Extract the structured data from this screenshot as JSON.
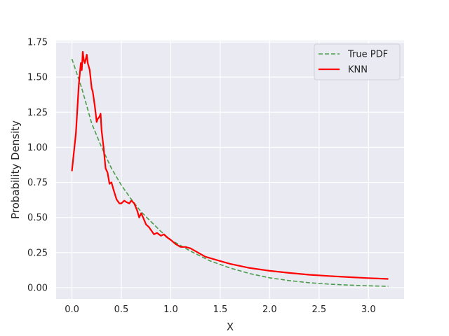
{
  "chart_data": {
    "type": "line",
    "xlabel": "X",
    "ylabel": "Probability Density",
    "xlim": [
      -0.16,
      3.36
    ],
    "ylim": [
      -0.08,
      1.76
    ],
    "xticks": [
      0.0,
      0.5,
      1.0,
      1.5,
      2.0,
      2.5,
      3.0
    ],
    "yticks": [
      0.0,
      0.25,
      0.5,
      0.75,
      1.0,
      1.25,
      1.5,
      1.75
    ],
    "xtick_labels": [
      "0.0",
      "0.5",
      "1.0",
      "1.5",
      "2.0",
      "2.5",
      "3.0"
    ],
    "ytick_labels": [
      "0.00",
      "0.25",
      "0.50",
      "0.75",
      "1.00",
      "1.25",
      "1.50",
      "1.75"
    ],
    "grid": true,
    "legend_position": "top-right",
    "colors": {
      "background": "#eaeaf2",
      "grid": "#ffffff",
      "true_pdf": "#4a9c4a",
      "knn": "#ff0000"
    },
    "series": [
      {
        "name": "True PDF",
        "style": "dashed",
        "x": [
          0.0,
          0.1,
          0.2,
          0.3,
          0.4,
          0.5,
          0.6,
          0.7,
          0.8,
          0.9,
          1.0,
          1.2,
          1.4,
          1.6,
          1.8,
          2.0,
          2.2,
          2.4,
          2.6,
          2.8,
          3.0,
          3.2
        ],
        "y": [
          1.63,
          1.42,
          1.17,
          1.0,
          0.85,
          0.73,
          0.63,
          0.54,
          0.47,
          0.4,
          0.34,
          0.26,
          0.19,
          0.14,
          0.1,
          0.07,
          0.05,
          0.035,
          0.025,
          0.018,
          0.013,
          0.01
        ]
      },
      {
        "name": "KNN",
        "style": "solid",
        "x": [
          0.0,
          0.04,
          0.07,
          0.09,
          0.1,
          0.11,
          0.12,
          0.13,
          0.15,
          0.16,
          0.18,
          0.2,
          0.21,
          0.23,
          0.25,
          0.26,
          0.28,
          0.29,
          0.3,
          0.32,
          0.34,
          0.36,
          0.38,
          0.4,
          0.42,
          0.45,
          0.48,
          0.5,
          0.53,
          0.55,
          0.58,
          0.6,
          0.63,
          0.66,
          0.68,
          0.7,
          0.72,
          0.75,
          0.78,
          0.8,
          0.83,
          0.86,
          0.9,
          0.93,
          0.96,
          1.0,
          1.05,
          1.1,
          1.15,
          1.2,
          1.25,
          1.3,
          1.35,
          1.4,
          1.5,
          1.6,
          1.7,
          1.8,
          1.9,
          2.0,
          2.2,
          2.4,
          2.6,
          2.8,
          3.0,
          3.2
        ],
        "y": [
          0.83,
          1.1,
          1.45,
          1.6,
          1.55,
          1.68,
          1.62,
          1.6,
          1.66,
          1.6,
          1.55,
          1.42,
          1.4,
          1.3,
          1.18,
          1.2,
          1.22,
          1.24,
          1.12,
          1.0,
          0.85,
          0.82,
          0.74,
          0.75,
          0.7,
          0.63,
          0.6,
          0.6,
          0.62,
          0.61,
          0.6,
          0.62,
          0.6,
          0.55,
          0.5,
          0.53,
          0.5,
          0.45,
          0.43,
          0.41,
          0.38,
          0.39,
          0.37,
          0.38,
          0.36,
          0.34,
          0.31,
          0.29,
          0.29,
          0.28,
          0.26,
          0.24,
          0.22,
          0.21,
          0.19,
          0.17,
          0.155,
          0.14,
          0.13,
          0.12,
          0.105,
          0.092,
          0.083,
          0.075,
          0.068,
          0.062
        ]
      }
    ]
  }
}
